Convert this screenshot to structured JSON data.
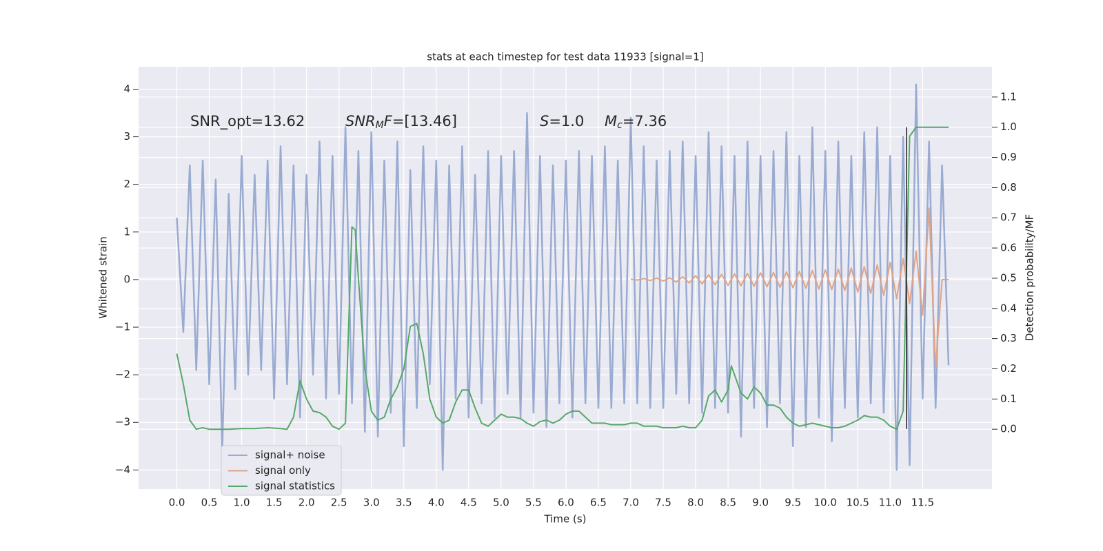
{
  "chart_data": {
    "type": "line",
    "title": "stats at each timestep for test data 11933 [signal=1]",
    "x_label": "Time (s)",
    "y_label": "Whitened strain",
    "y2_label": "Detection probability/MF",
    "grid": true,
    "legend": "lower left",
    "xlim": [
      -0.59,
      12.57
    ],
    "ylim": [
      -4.4,
      4.47
    ],
    "y2lim": [
      -0.198,
      1.2
    ],
    "xticks": [
      {
        "value": 0,
        "label": "0.0"
      },
      0.5,
      {
        "value": 1,
        "label": "1.0"
      },
      1.5,
      {
        "value": 2,
        "label": "2.0"
      },
      2.5,
      {
        "value": 3,
        "label": "3.0"
      },
      3.5,
      {
        "value": 4,
        "label": "4.0"
      },
      4.5,
      {
        "value": 5,
        "label": "5.0"
      },
      5.5,
      {
        "value": 6,
        "label": "6.0"
      },
      6.5,
      {
        "value": 7,
        "label": "7.0"
      },
      7.5,
      {
        "value": 8,
        "label": "8.0"
      },
      8.5,
      {
        "value": 9,
        "label": "9.0"
      },
      9.5,
      {
        "value": 10,
        "label": "10.0"
      },
      10.5,
      {
        "value": 11,
        "label": "11.0"
      },
      11.5
    ],
    "yticks": [
      {
        "value": -4,
        "label": "−4"
      },
      {
        "value": -3,
        "label": "−3"
      },
      {
        "value": -2,
        "label": "−2"
      },
      {
        "value": -1,
        "label": "−1"
      },
      0,
      1,
      2,
      3,
      4
    ],
    "y2ticks": [
      {
        "value": 0,
        "label": "0.0"
      },
      0.1,
      0.2,
      0.3,
      0.4,
      0.5,
      0.6,
      0.7,
      0.8,
      0.9,
      {
        "value": 1,
        "label": "1.0"
      },
      1.1
    ],
    "annotations": [
      [
        {
          "text": "SNR_opt=13.62"
        }
      ],
      [
        {
          "text": "SNR",
          "italic": true
        },
        {
          "text": "M",
          "italic": true,
          "sub": true
        },
        {
          "text": "F",
          "italic": true
        },
        {
          "text": "=[13.46]"
        }
      ],
      [
        {
          "text": "S",
          "italic": true
        },
        {
          "text": "=1.0"
        }
      ],
      [
        {
          "text": "M",
          "italic": true
        },
        {
          "text": "c",
          "italic": true,
          "sub": true
        },
        {
          "text": "=7.36"
        }
      ]
    ],
    "marker_line": {
      "x": 11.25,
      "y": [
        -3.14,
        3.2
      ],
      "color": "#222222"
    },
    "series": [
      {
        "name": "signal+ noise",
        "color": "#9aabd2",
        "width": 2.5,
        "x": [
          0.0,
          0.1,
          0.2,
          0.3,
          0.4,
          0.5,
          0.6,
          0.7,
          0.8,
          0.9,
          1.0,
          1.1,
          1.2,
          1.3,
          1.4,
          1.5,
          1.6,
          1.7,
          1.8,
          1.9,
          2.0,
          2.1,
          2.2,
          2.3,
          2.4,
          2.5,
          2.6,
          2.7,
          2.8,
          2.9,
          3.0,
          3.1,
          3.2,
          3.3,
          3.4,
          3.5,
          3.6,
          3.7,
          3.8,
          3.9,
          4.0,
          4.1,
          4.2,
          4.3,
          4.4,
          4.5,
          4.6,
          4.7,
          4.8,
          4.9,
          5.0,
          5.1,
          5.2,
          5.3,
          5.4,
          5.5,
          5.6,
          5.7,
          5.8,
          5.9,
          6.0,
          6.1,
          6.2,
          6.3,
          6.4,
          6.5,
          6.6,
          6.7,
          6.8,
          6.9,
          7.0,
          7.1,
          7.2,
          7.3,
          7.4,
          7.5,
          7.6,
          7.7,
          7.8,
          7.9,
          8.0,
          8.1,
          8.2,
          8.3,
          8.4,
          8.5,
          8.6,
          8.7,
          8.8,
          8.9,
          9.0,
          9.1,
          9.2,
          9.3,
          9.4,
          9.5,
          9.6,
          9.7,
          9.8,
          9.9,
          10.0,
          10.1,
          10.2,
          10.3,
          10.4,
          10.5,
          10.6,
          10.7,
          10.8,
          10.9,
          11.0,
          11.1,
          11.2,
          11.3,
          11.4,
          11.5,
          11.6,
          11.7,
          11.8,
          11.9
        ],
        "values": [
          1.3,
          -1.1,
          2.4,
          -1.9,
          2.5,
          -2.2,
          2.1,
          -3.6,
          1.8,
          -2.3,
          2.6,
          -2.0,
          2.2,
          -1.9,
          2.5,
          -2.5,
          2.8,
          -2.2,
          2.4,
          -2.9,
          2.2,
          -2.0,
          2.9,
          -2.5,
          2.6,
          -2.4,
          3.2,
          -2.6,
          2.7,
          -3.2,
          3.1,
          -3.3,
          2.5,
          -2.8,
          2.9,
          -3.5,
          2.3,
          -2.7,
          2.8,
          -2.2,
          2.5,
          -4.0,
          2.4,
          -2.5,
          2.8,
          -2.9,
          2.2,
          -2.6,
          2.7,
          -2.9,
          2.6,
          -2.4,
          2.7,
          -2.9,
          3.5,
          -2.8,
          2.6,
          -3.1,
          2.4,
          -2.6,
          2.5,
          -2.9,
          2.7,
          -2.6,
          2.6,
          -2.7,
          2.8,
          -2.7,
          2.5,
          -2.6,
          3.4,
          -2.6,
          2.8,
          -2.7,
          2.5,
          -2.7,
          2.7,
          -2.4,
          2.9,
          -2.6,
          2.6,
          -2.8,
          3.1,
          -2.7,
          2.8,
          -2.8,
          2.6,
          -3.3,
          2.9,
          -2.7,
          2.6,
          -3.1,
          2.7,
          -2.6,
          3.1,
          -3.5,
          2.6,
          -3.1,
          3.2,
          -2.9,
          2.7,
          -3.4,
          2.9,
          -2.7,
          2.6,
          -2.9,
          3.1,
          -2.6,
          3.2,
          -2.8,
          2.6,
          -4.0,
          3.0,
          -3.9,
          4.1,
          -2.5,
          2.9,
          -2.7,
          2.4,
          -1.8
        ]
      },
      {
        "name": "signal only",
        "color": "#e0a487",
        "width": 2,
        "x": [
          7.0,
          7.1,
          7.2,
          7.3,
          7.4,
          7.5,
          7.6,
          7.7,
          7.8,
          7.9,
          8.0,
          8.1,
          8.2,
          8.3,
          8.4,
          8.5,
          8.6,
          8.7,
          8.8,
          8.9,
          9.0,
          9.1,
          9.2,
          9.3,
          9.4,
          9.5,
          9.6,
          9.7,
          9.8,
          9.9,
          10.0,
          10.1,
          10.2,
          10.3,
          10.4,
          10.5,
          10.6,
          10.7,
          10.8,
          10.9,
          11.0,
          11.1,
          11.2,
          11.3,
          11.4,
          11.5,
          11.6,
          11.7,
          11.8,
          11.9
        ],
        "values": [
          0.01,
          -0.01,
          0.02,
          -0.02,
          0.03,
          -0.03,
          0.04,
          -0.05,
          0.06,
          -0.07,
          0.08,
          -0.09,
          0.1,
          -0.11,
          0.11,
          -0.12,
          0.12,
          -0.13,
          0.13,
          -0.14,
          0.14,
          -0.15,
          0.15,
          -0.16,
          0.16,
          -0.17,
          0.17,
          -0.18,
          0.19,
          -0.2,
          0.2,
          -0.21,
          0.22,
          -0.23,
          0.24,
          -0.26,
          0.27,
          -0.29,
          0.31,
          -0.33,
          0.36,
          -0.4,
          0.44,
          -0.5,
          0.6,
          -0.75,
          1.5,
          -1.85,
          0.0,
          0.0
        ]
      },
      {
        "name": "signal statistics",
        "color": "#55a868",
        "width": 2,
        "axis": "y2",
        "x": [
          0.0,
          0.1,
          0.2,
          0.3,
          0.4,
          0.5,
          0.6,
          0.8,
          1.0,
          1.2,
          1.4,
          1.6,
          1.7,
          1.8,
          1.9,
          2.0,
          2.1,
          2.2,
          2.3,
          2.4,
          2.5,
          2.6,
          2.7,
          2.75,
          2.8,
          2.9,
          3.0,
          3.1,
          3.2,
          3.3,
          3.4,
          3.5,
          3.6,
          3.7,
          3.8,
          3.9,
          4.0,
          4.1,
          4.2,
          4.3,
          4.4,
          4.5,
          4.6,
          4.7,
          4.8,
          4.9,
          5.0,
          5.1,
          5.2,
          5.3,
          5.4,
          5.5,
          5.6,
          5.7,
          5.8,
          5.9,
          6.0,
          6.1,
          6.2,
          6.3,
          6.4,
          6.5,
          6.6,
          6.7,
          6.8,
          6.9,
          7.0,
          7.1,
          7.2,
          7.3,
          7.4,
          7.5,
          7.6,
          7.7,
          7.8,
          7.9,
          8.0,
          8.1,
          8.2,
          8.3,
          8.4,
          8.5,
          8.55,
          8.7,
          8.8,
          8.9,
          9.0,
          9.1,
          9.2,
          9.3,
          9.4,
          9.5,
          9.6,
          9.7,
          9.8,
          9.9,
          10.0,
          10.1,
          10.2,
          10.3,
          10.4,
          10.5,
          10.6,
          10.7,
          10.8,
          10.9,
          11.0,
          11.1,
          11.2,
          11.3,
          11.4,
          11.5,
          11.9
        ],
        "values": [
          0.25,
          0.15,
          0.03,
          0.0,
          0.005,
          0.0,
          0.0,
          0.0,
          0.002,
          0.002,
          0.005,
          0.002,
          0.0,
          0.04,
          0.16,
          0.1,
          0.06,
          0.055,
          0.04,
          0.01,
          0.0,
          0.02,
          0.67,
          0.66,
          0.5,
          0.2,
          0.06,
          0.03,
          0.04,
          0.1,
          0.14,
          0.2,
          0.34,
          0.35,
          0.25,
          0.1,
          0.04,
          0.02,
          0.03,
          0.09,
          0.13,
          0.13,
          0.07,
          0.02,
          0.01,
          0.03,
          0.05,
          0.04,
          0.04,
          0.035,
          0.02,
          0.01,
          0.025,
          0.03,
          0.02,
          0.03,
          0.05,
          0.06,
          0.06,
          0.04,
          0.02,
          0.02,
          0.02,
          0.015,
          0.015,
          0.015,
          0.02,
          0.02,
          0.01,
          0.01,
          0.01,
          0.005,
          0.005,
          0.005,
          0.01,
          0.005,
          0.005,
          0.03,
          0.11,
          0.13,
          0.09,
          0.13,
          0.21,
          0.12,
          0.1,
          0.14,
          0.12,
          0.08,
          0.08,
          0.07,
          0.04,
          0.02,
          0.01,
          0.015,
          0.02,
          0.015,
          0.01,
          0.005,
          0.005,
          0.01,
          0.02,
          0.03,
          0.045,
          0.04,
          0.04,
          0.03,
          0.01,
          0.0,
          0.06,
          0.97,
          1.0,
          1.0,
          1.0
        ]
      }
    ]
  }
}
